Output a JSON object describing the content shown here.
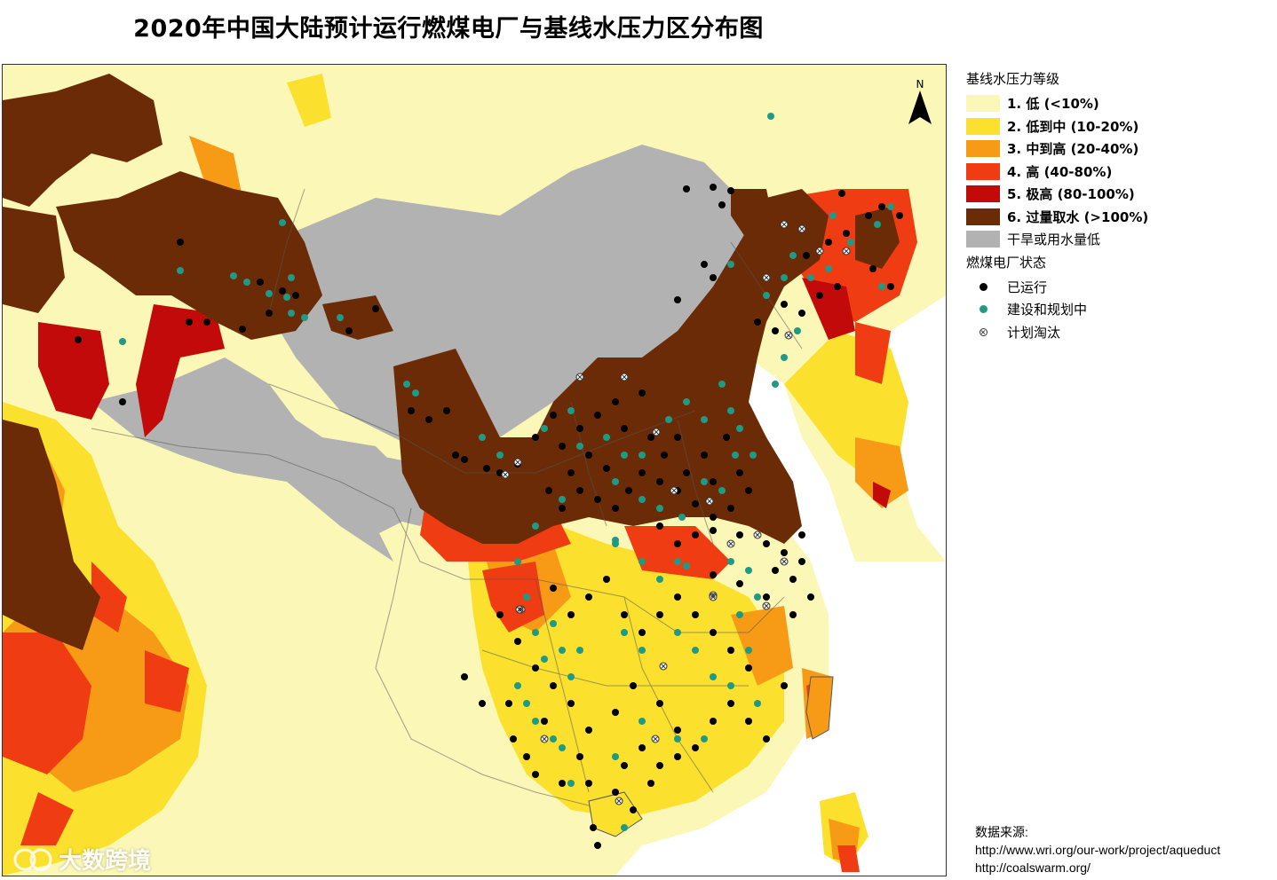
{
  "title": "2020年中国大陆预计运行燃煤电厂与基线水压力区分布图",
  "legend": {
    "water_heading": "基线水压力等级",
    "categories": [
      {
        "label": "1. 低 (<10%)",
        "color": "#fbf7b7"
      },
      {
        "label": "2. 低到中 (10-20%)",
        "color": "#fbe12d"
      },
      {
        "label": "3. 中到高 (20-40%)",
        "color": "#f79a16"
      },
      {
        "label": "4. 高 (40-80%)",
        "color": "#f03c12"
      },
      {
        "label": "5. 极高 (80-100%)",
        "color": "#c20a0a"
      },
      {
        "label": "6. 过量取水 (>100%)",
        "color": "#6b2b07"
      },
      {
        "label": "干旱或用水量低",
        "color": "#b2b2b2"
      }
    ],
    "plant_heading": "燃煤电厂状态",
    "plant_status": [
      {
        "label": "已运行",
        "color": "#000000"
      },
      {
        "label": "建设和规划中",
        "color": "#1f9a84"
      },
      {
        "label": "计划淘汰",
        "color": "#ffffff"
      }
    ]
  },
  "north_label": "N",
  "source": {
    "heading": "数据来源:",
    "lines": [
      "http://www.wri.org/our-work/project/aqueduct",
      "http://coalswarm.org/"
    ]
  },
  "watermark": "大数跨境"
}
